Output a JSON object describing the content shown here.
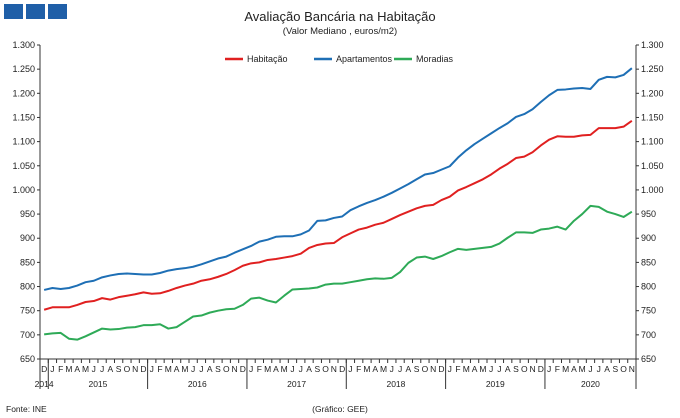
{
  "brand": {
    "logo_color": "#1f5fa8",
    "logo_name": "logo-squares"
  },
  "footer": {
    "source": "Fonte:  INE",
    "credit": "(Gráfico:  GEE)"
  },
  "chart_data": {
    "type": "line",
    "title": "Avaliação Bancária na Habitação",
    "subtitle": "(Valor Mediano , euros/m2)",
    "ylim": [
      650,
      1300
    ],
    "yticks": [
      650,
      700,
      750,
      800,
      850,
      900,
      950,
      "1.000",
      "1.050",
      "1.100",
      "1.150",
      "1.200",
      "1.250",
      "1.300"
    ],
    "grid": false,
    "legend_position": "top-center",
    "x_months": [
      "D",
      "J",
      "F",
      "M",
      "A",
      "M",
      "J",
      "J",
      "A",
      "S",
      "O",
      "N",
      "D",
      "J",
      "F",
      "M",
      "A",
      "M",
      "J",
      "J",
      "A",
      "S",
      "O",
      "N",
      "D",
      "J",
      "F",
      "M",
      "A",
      "M",
      "J",
      "J",
      "A",
      "S",
      "O",
      "N",
      "D",
      "J",
      "F",
      "M",
      "A",
      "M",
      "J",
      "J",
      "A",
      "S",
      "O",
      "N",
      "D",
      "J",
      "F",
      "M",
      "A",
      "M",
      "J",
      "J",
      "A",
      "S",
      "O",
      "N",
      "D",
      "J",
      "F",
      "M",
      "A",
      "M",
      "J",
      "J",
      "A",
      "S",
      "O",
      "N"
    ],
    "x_years": [
      {
        "label": "2014",
        "start": 0,
        "end": 0
      },
      {
        "label": "2015",
        "start": 1,
        "end": 12
      },
      {
        "label": "2016",
        "start": 13,
        "end": 24
      },
      {
        "label": "2017",
        "start": 25,
        "end": 36
      },
      {
        "label": "2018",
        "start": 37,
        "end": 48
      },
      {
        "label": "2019",
        "start": 49,
        "end": 60
      },
      {
        "label": "2020",
        "start": 61,
        "end": 71
      }
    ],
    "series": [
      {
        "name": "Habitação",
        "color": "#e02020",
        "values": [
          752,
          757,
          757,
          757,
          762,
          768,
          770,
          776,
          773,
          778,
          781,
          784,
          788,
          785,
          786,
          791,
          797,
          802,
          806,
          812,
          815,
          820,
          826,
          834,
          843,
          848,
          850,
          855,
          857,
          860,
          863,
          868,
          880,
          886,
          889,
          890,
          902,
          910,
          918,
          922,
          928,
          932,
          940,
          948,
          955,
          962,
          967,
          969,
          979,
          986,
          999,
          1006,
          1014,
          1022,
          1032,
          1044,
          1054,
          1066,
          1069,
          1078,
          1092,
          1104,
          1111,
          1110,
          1110,
          1113,
          1114,
          1128,
          1128,
          1128,
          1131,
          1143
        ]
      },
      {
        "name": "Apartamentos",
        "color": "#1e6fb5",
        "values": [
          793,
          797,
          795,
          797,
          802,
          809,
          812,
          819,
          823,
          826,
          827,
          826,
          825,
          825,
          828,
          833,
          836,
          838,
          841,
          846,
          852,
          858,
          862,
          870,
          877,
          884,
          893,
          897,
          903,
          904,
          904,
          908,
          916,
          936,
          937,
          942,
          945,
          958,
          966,
          973,
          979,
          986,
          994,
          1003,
          1012,
          1022,
          1032,
          1035,
          1042,
          1049,
          1067,
          1082,
          1095,
          1106,
          1117,
          1128,
          1138,
          1151,
          1157,
          1167,
          1182,
          1196,
          1207,
          1208,
          1210,
          1211,
          1209,
          1228,
          1234,
          1233,
          1238,
          1252
        ]
      },
      {
        "name": "Moradias",
        "color": "#2eaa57",
        "values": [
          701,
          703,
          704,
          692,
          690,
          697,
          705,
          713,
          711,
          712,
          715,
          716,
          720,
          720,
          722,
          713,
          716,
          727,
          738,
          740,
          746,
          750,
          753,
          754,
          762,
          775,
          777,
          771,
          767,
          781,
          794,
          795,
          796,
          798,
          804,
          806,
          806,
          809,
          812,
          815,
          817,
          816,
          818,
          830,
          849,
          860,
          862,
          857,
          863,
          871,
          878,
          876,
          878,
          880,
          882,
          889,
          901,
          912,
          912,
          911,
          918,
          920,
          924,
          918,
          936,
          950,
          967,
          965,
          955,
          950,
          944,
          955
        ]
      }
    ]
  }
}
